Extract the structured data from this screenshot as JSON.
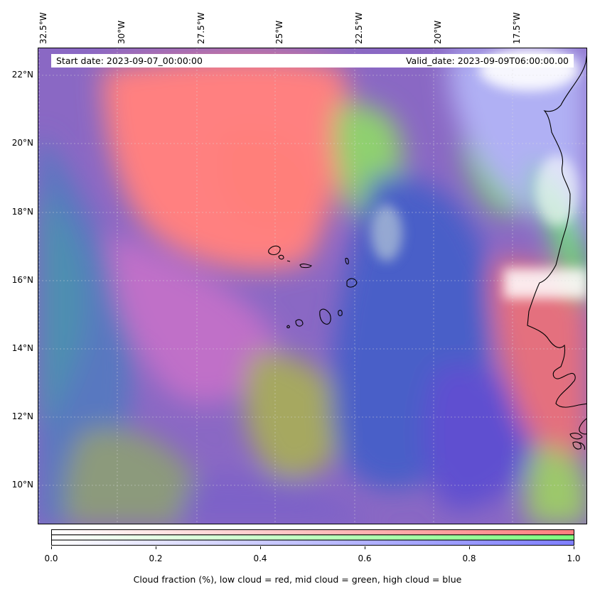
{
  "header": {
    "start_date": "Start date: 2023-09-07_00:00:00",
    "valid_date": "Valid_date: 2023-09-09T06:00:00.00"
  },
  "map": {
    "lon_labels": [
      "32.5°W",
      "30°W",
      "27.5°W",
      "25°W",
      "22.5°W",
      "20°W",
      "17.5°W"
    ],
    "lat_labels": [
      "22°N",
      "20°N",
      "18°N",
      "16°N",
      "14°N",
      "12°N",
      "10°N"
    ],
    "colors": {
      "low_cloud": "#ff7f7f",
      "mid_cloud": "#7fff7f",
      "high_cloud": "#7f7fff"
    }
  },
  "colorbar": {
    "ticks": [
      "0.0",
      "0.2",
      "0.4",
      "0.6",
      "0.8",
      "1.0"
    ],
    "label": "Cloud fraction (%), low cloud = red, mid cloud = green, high cloud = blue"
  }
}
